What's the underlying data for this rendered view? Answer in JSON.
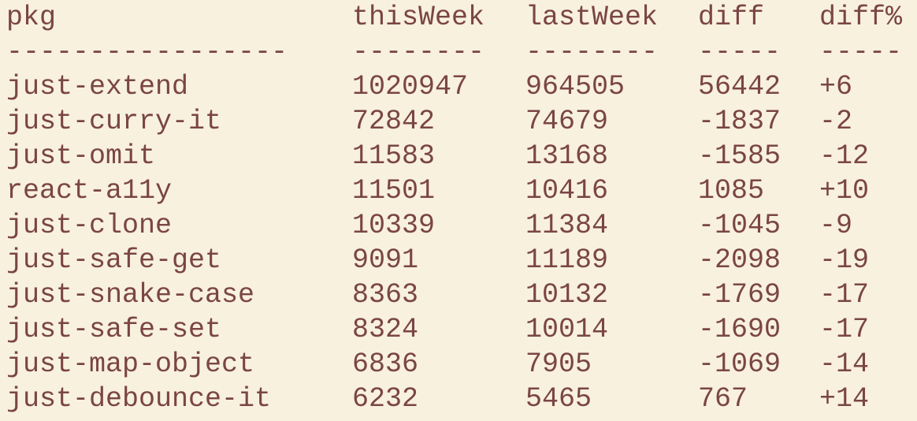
{
  "header": {
    "pkg": "pkg",
    "thisWeek": "thisWeek",
    "lastWeek": "lastWeek",
    "diff": "diff",
    "diffPct": "diff%"
  },
  "separator": {
    "pkg": "-----------------",
    "thisWeek": "--------",
    "lastWeek": "--------",
    "diff": "-----",
    "diffPct": "-----"
  },
  "rows": [
    {
      "pkg": "just-extend",
      "thisWeek": "1020947",
      "lastWeek": "964505",
      "diff": "56442",
      "diffPct": "+6"
    },
    {
      "pkg": "just-curry-it",
      "thisWeek": "72842",
      "lastWeek": "74679",
      "diff": "-1837",
      "diffPct": "-2"
    },
    {
      "pkg": "just-omit",
      "thisWeek": "11583",
      "lastWeek": "13168",
      "diff": "-1585",
      "diffPct": "-12"
    },
    {
      "pkg": "react-a11y",
      "thisWeek": "11501",
      "lastWeek": "10416",
      "diff": "1085",
      "diffPct": "+10"
    },
    {
      "pkg": "just-clone",
      "thisWeek": "10339",
      "lastWeek": "11384",
      "diff": "-1045",
      "diffPct": "-9"
    },
    {
      "pkg": "just-safe-get",
      "thisWeek": "9091",
      "lastWeek": "11189",
      "diff": "-2098",
      "diffPct": "-19"
    },
    {
      "pkg": "just-snake-case",
      "thisWeek": "8363",
      "lastWeek": "10132",
      "diff": "-1769",
      "diffPct": "-17"
    },
    {
      "pkg": "just-safe-set",
      "thisWeek": "8324",
      "lastWeek": "10014",
      "diff": "-1690",
      "diffPct": "-17"
    },
    {
      "pkg": "just-map-object",
      "thisWeek": "6836",
      "lastWeek": "7905",
      "diff": "-1069",
      "diffPct": "-14"
    },
    {
      "pkg": "just-debounce-it",
      "thisWeek": "6232",
      "lastWeek": "5465",
      "diff": "767",
      "diffPct": "+14"
    }
  ],
  "colors": {
    "background": "#f8f1dd",
    "text": "#7a4545"
  }
}
